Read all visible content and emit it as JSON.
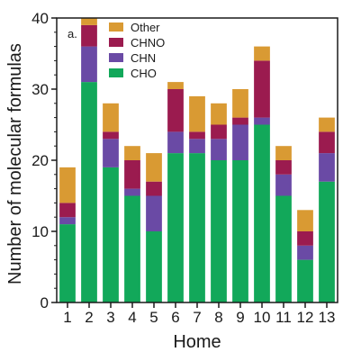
{
  "chart_data": {
    "type": "bar",
    "stacked": true,
    "panel_label": "a.",
    "xlabel": "Home",
    "ylabel": "Number of molecular formulas",
    "categories": [
      "1",
      "2",
      "3",
      "4",
      "5",
      "6",
      "7",
      "8",
      "9",
      "10",
      "11",
      "12",
      "13"
    ],
    "ylim": [
      0,
      40
    ],
    "yticks": [
      "0",
      "10",
      "20",
      "30",
      "40"
    ],
    "series": [
      {
        "name": "CHO",
        "color": "#12a85a",
        "values": [
          11,
          31,
          19,
          15,
          10,
          21,
          21,
          20,
          20,
          25,
          15,
          6,
          17
        ]
      },
      {
        "name": "CHN",
        "color": "#6a4aa5",
        "values": [
          1,
          5,
          4,
          1,
          5,
          3,
          2,
          3,
          5,
          1,
          3,
          2,
          4
        ]
      },
      {
        "name": "CHNO",
        "color": "#9b1b4f",
        "values": [
          2,
          3,
          1,
          4,
          2,
          6,
          1,
          2,
          1,
          8,
          2,
          2,
          3
        ]
      },
      {
        "name": "Other",
        "color": "#d99a33",
        "values": [
          5,
          1,
          4,
          2,
          4,
          1,
          5,
          3,
          4,
          2,
          2,
          3,
          2
        ]
      }
    ],
    "legend": {
      "placement": "top-left",
      "order": [
        "Other",
        "CHNO",
        "CHN",
        "CHO"
      ]
    },
    "grid": false
  }
}
